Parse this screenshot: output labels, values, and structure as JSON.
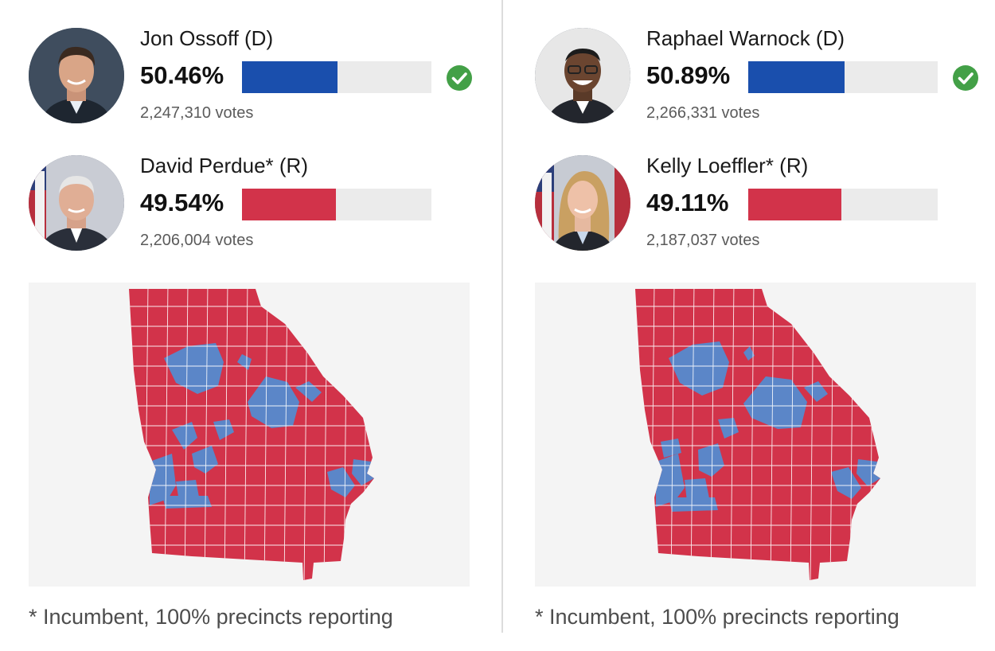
{
  "colors": {
    "democrat": "#1a4fad",
    "republican": "#d2334a",
    "map_dem": "#5b86c8",
    "map_rep": "#d2334a",
    "winner_check": "#43a047",
    "track": "#ebebeb"
  },
  "races": [
    {
      "candidates": [
        {
          "name": "Jon Ossoff (D)",
          "pct_label": "50.46%",
          "pct": 50.46,
          "votes_label": "2,247,310 votes",
          "party": "D",
          "winner": true,
          "icon": "checkmark-circle-icon"
        },
        {
          "name": "David Perdue* (R)",
          "pct_label": "49.54%",
          "pct": 49.54,
          "votes_label": "2,206,004 votes",
          "party": "R",
          "winner": false
        }
      ],
      "footnote": "* Incumbent, 100% precincts reporting"
    },
    {
      "candidates": [
        {
          "name": "Raphael Warnock (D)",
          "pct_label": "50.89%",
          "pct": 50.89,
          "votes_label": "2,266,331 votes",
          "party": "D",
          "winner": true,
          "icon": "checkmark-circle-icon"
        },
        {
          "name": "Kelly Loeffler* (R)",
          "pct_label": "49.11%",
          "pct": 49.11,
          "votes_label": "2,187,037 votes",
          "party": "R",
          "winner": false
        }
      ],
      "footnote": "* Incumbent, 100% precincts reporting"
    }
  ]
}
